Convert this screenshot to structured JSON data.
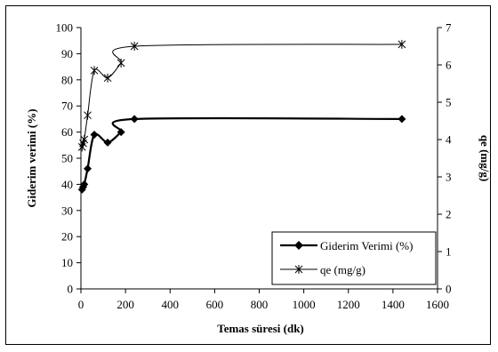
{
  "chart_data": {
    "type": "line",
    "xlabel": "Temas süresi (dk)",
    "ylabel": "Giderim verimi (%)",
    "y2label": "qe (mg/g)",
    "xlim": [
      0,
      1600
    ],
    "ylim": [
      0,
      100
    ],
    "y2lim": [
      0,
      7
    ],
    "x_ticks": [
      "0",
      "200",
      "400",
      "600",
      "800",
      "1000",
      "1200",
      "1400",
      "1600"
    ],
    "y_ticks": [
      "0",
      "10",
      "20",
      "30",
      "40",
      "50",
      "60",
      "70",
      "80",
      "90",
      "100"
    ],
    "y2_ticks": [
      "0",
      "1",
      "2",
      "3",
      "4",
      "5",
      "6",
      "7"
    ],
    "legend_position": "bottom-right",
    "grid": false,
    "series": [
      {
        "name": "Giderim Verimi (%)",
        "axis": "left",
        "marker": "diamond",
        "color": "#000000",
        "x": [
          5,
          10,
          15,
          30,
          60,
          120,
          180,
          240,
          1440
        ],
        "y": [
          38,
          39,
          40,
          46,
          59,
          56,
          60,
          65,
          65
        ]
      },
      {
        "name": "qe (mg/g)",
        "axis": "right",
        "marker": "asterisk",
        "color": "#000000",
        "x": [
          5,
          10,
          15,
          30,
          60,
          120,
          180,
          240,
          1440
        ],
        "y": [
          3.8,
          3.9,
          4.0,
          4.65,
          5.85,
          5.65,
          6.05,
          6.5,
          6.55
        ]
      }
    ]
  }
}
